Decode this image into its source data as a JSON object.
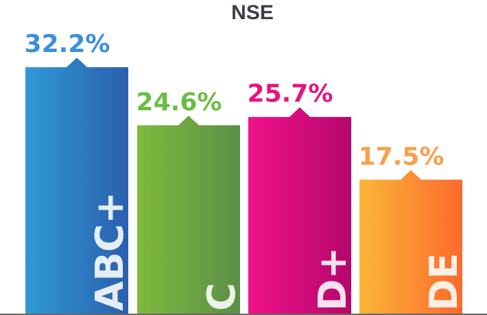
{
  "chart_data": {
    "type": "bar",
    "title": "NSE",
    "categories": [
      "ABC+",
      "C",
      "D+",
      "DE"
    ],
    "values": [
      32.2,
      24.6,
      25.7,
      17.5
    ],
    "value_labels": [
      "32.2%",
      "24.6%",
      "25.7%",
      "17.5%"
    ],
    "xlabel": "",
    "ylabel": "",
    "ylim": [
      0,
      36.5
    ],
    "grid": false,
    "legend": "none",
    "colors": [
      {
        "start": "#2f9ad6",
        "end": "#2a5fae",
        "label": "#3b8fe0"
      },
      {
        "start": "#7fba3c",
        "end": "#5a8f47",
        "label": "#6cbd45"
      },
      {
        "start": "#f0128a",
        "end": "#b5076b",
        "label": "#e8137f"
      },
      {
        "start": "#fdb53a",
        "end": "#fb6a2c",
        "label": "#f9a04a"
      }
    ],
    "baseline_color": "#666666"
  }
}
